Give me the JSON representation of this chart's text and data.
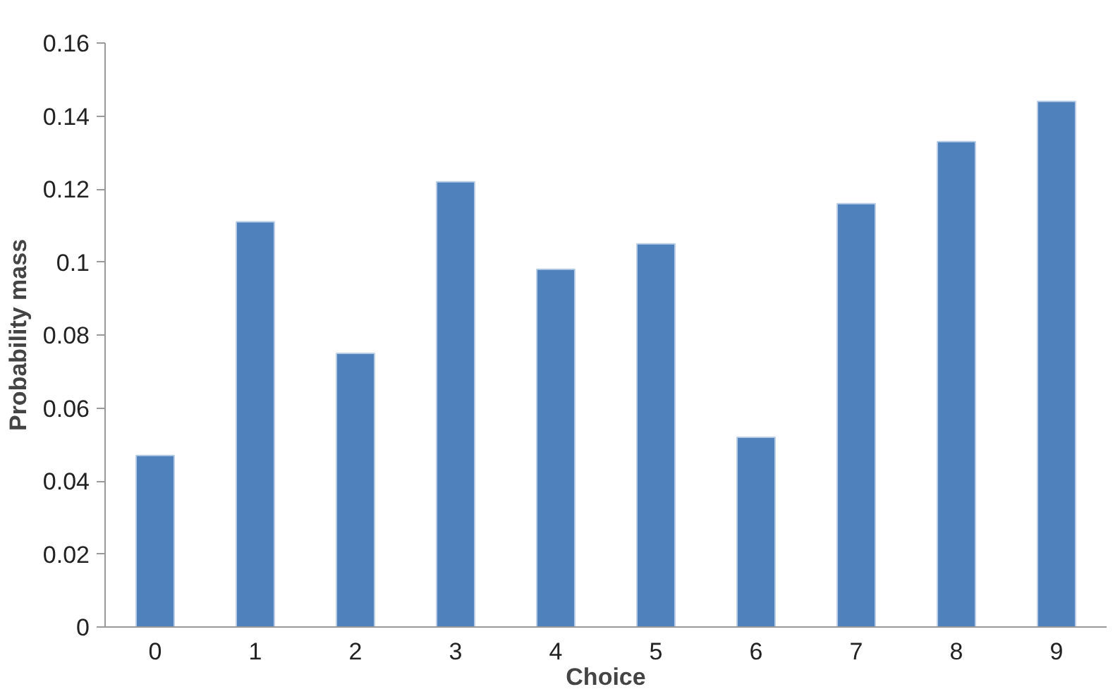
{
  "chart_data": {
    "type": "bar",
    "xlabel": "Choice",
    "ylabel": "Probability mass",
    "categories": [
      "0",
      "1",
      "2",
      "3",
      "4",
      "5",
      "6",
      "7",
      "8",
      "9"
    ],
    "values": [
      0.047,
      0.111,
      0.075,
      0.122,
      0.098,
      0.105,
      0.052,
      0.116,
      0.133,
      0.144
    ],
    "color": "#4f81bd",
    "ylim": [
      0,
      0.16
    ],
    "yticks": [
      0,
      0.02,
      0.04,
      0.06,
      0.08,
      {
        "value": 0.1,
        "label": "0.1"
      },
      0.12,
      0.14,
      0.16
    ],
    "grid": false
  }
}
